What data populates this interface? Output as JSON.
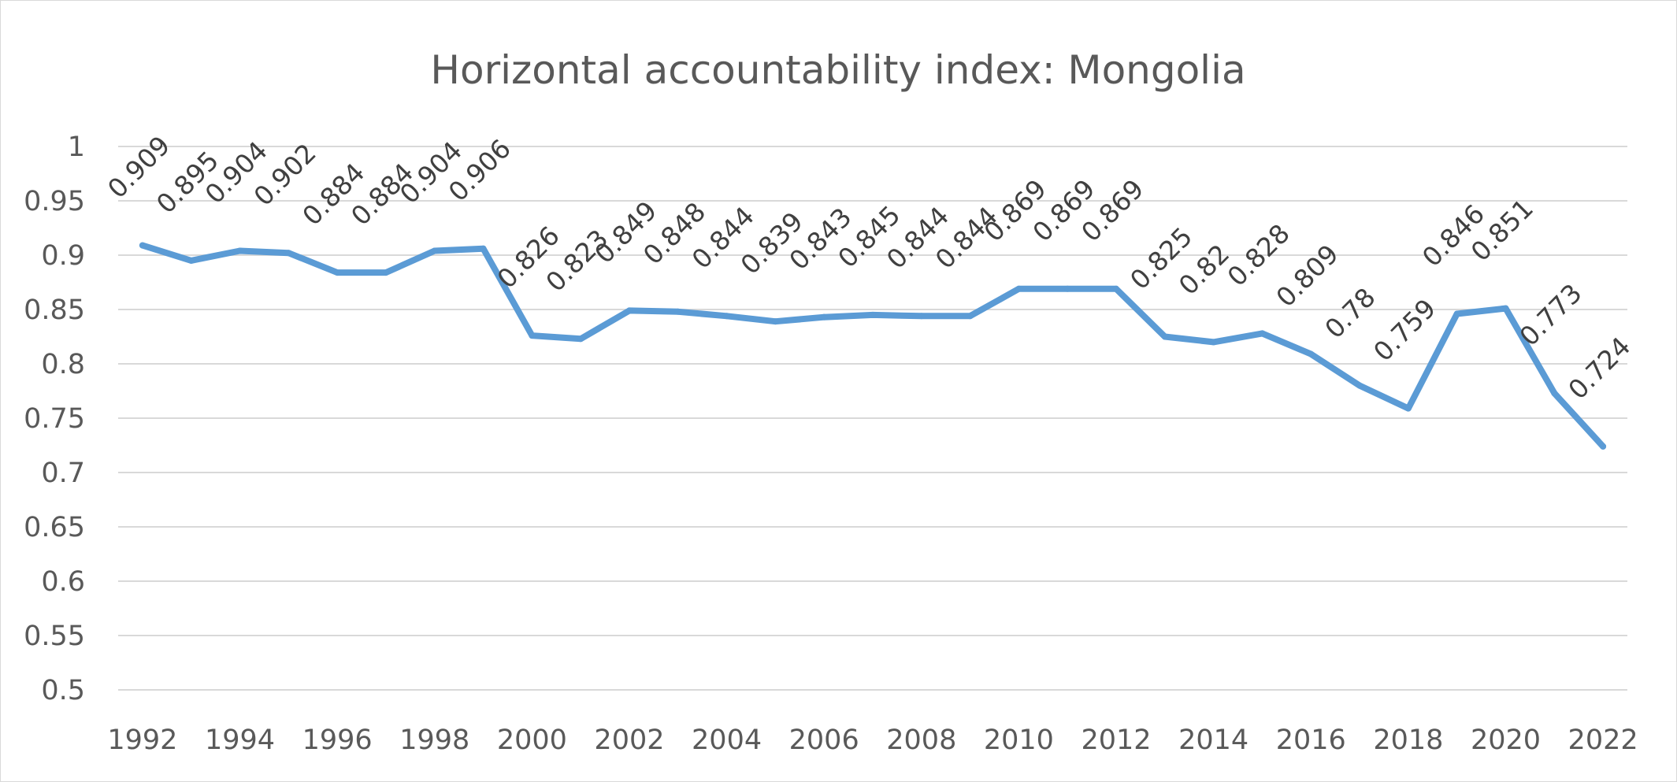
{
  "chart_data": {
    "type": "line",
    "title": "Horizontal accountability index: Mongolia",
    "x": [
      1992,
      1993,
      1994,
      1995,
      1996,
      1997,
      1998,
      1999,
      2000,
      2001,
      2002,
      2003,
      2004,
      2005,
      2006,
      2007,
      2008,
      2009,
      2010,
      2011,
      2012,
      2013,
      2014,
      2015,
      2016,
      2017,
      2018,
      2019,
      2020,
      2021,
      2022
    ],
    "x_tick_labels": [
      "1992",
      "1994",
      "1996",
      "1998",
      "2000",
      "2002",
      "2004",
      "2006",
      "2008",
      "2010",
      "2012",
      "2014",
      "2016",
      "2018",
      "2020",
      "2022"
    ],
    "y_tick_labels": [
      "1",
      "0.95",
      "0.9",
      "0.85",
      "0.8",
      "0.75",
      "0.7",
      "0.65",
      "0.6",
      "0.55",
      "0.5"
    ],
    "series": [
      {
        "values": [
          0.909,
          0.895,
          0.904,
          0.902,
          0.884,
          0.884,
          0.904,
          0.906,
          0.826,
          0.823,
          0.849,
          0.848,
          0.844,
          0.839,
          0.843,
          0.845,
          0.844,
          0.844,
          0.869,
          0.869,
          0.869,
          0.825,
          0.82,
          0.828,
          0.809,
          0.78,
          0.759,
          0.846,
          0.851,
          0.773,
          0.724
        ],
        "data_labels": [
          "0.909",
          "0.895",
          "0.904",
          "0.902",
          "0.884",
          "0.884",
          "0.904",
          "0.906",
          "0.826",
          "0.823",
          "0.849",
          "0.848",
          "0.844",
          "0.839",
          "0.843",
          "0.845",
          "0.844",
          "0.844",
          "0.869",
          "0.869",
          "0.869",
          "0.825",
          "0.82",
          "0.828",
          "0.809",
          "0.78",
          "0.759",
          "0.846",
          "0.851",
          "0.773",
          "0.724"
        ]
      }
    ],
    "xlabel": "",
    "ylabel": "",
    "ylim": [
      0.5,
      1
    ],
    "grid": "horizontal",
    "legend": "none",
    "line_color": "#5b9bd5",
    "grid_color": "#d9d9d9",
    "text_color": "#595959"
  }
}
